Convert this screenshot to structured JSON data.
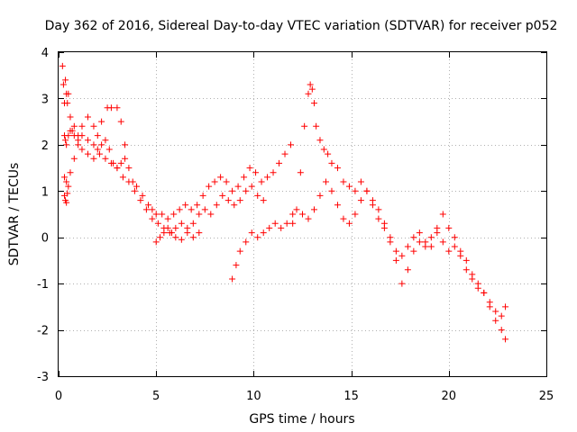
{
  "chart_data": {
    "type": "scatter",
    "title": "Day 362 of 2016, Sidereal Day-to-day VTEC variation (SDTVAR) for receiver p052",
    "xlabel": "GPS time / hours",
    "ylabel": "SDTVAR / TECUs",
    "xlim": [
      0,
      25
    ],
    "ylim": [
      -3,
      4
    ],
    "xticks": [
      0,
      5,
      10,
      15,
      20,
      25
    ],
    "yticks": [
      -3,
      -2,
      -1,
      0,
      1,
      2,
      3,
      4
    ],
    "xtick_labels": [
      "0",
      "5",
      "10",
      "15",
      "20",
      "25"
    ],
    "ytick_labels": [
      "-3",
      "-2",
      "-1",
      "0",
      "1",
      "2",
      "3",
      "4"
    ],
    "grid": true,
    "marker": "+",
    "series": [
      {
        "name": "SDTVAR p052",
        "color": "#ff0000",
        "segments": [
          {
            "x": [
              0.2,
              0.25,
              0.3,
              0.35,
              0.4,
              0.45,
              0.5,
              0.6,
              0.7,
              0.8,
              1.0,
              1.2,
              1.5,
              1.8,
              2.0,
              2.2,
              2.5,
              2.7,
              3.0,
              3.2,
              3.4
            ],
            "y": [
              3.7,
              3.3,
              2.9,
              3.4,
              3.1,
              2.9,
              3.1,
              2.6,
              2.3,
              2.4,
              2.2,
              2.4,
              2.6,
              2.4,
              2.2,
              2.5,
              2.8,
              2.8,
              2.8,
              2.5,
              2.0
            ]
          },
          {
            "x": [
              0.3,
              0.35,
              0.4,
              0.5,
              0.6,
              0.8,
              1.0,
              1.2,
              1.5,
              1.8,
              2.0,
              2.2,
              2.4,
              2.6,
              2.8,
              3.0,
              3.2,
              3.4,
              3.6,
              3.8,
              4.0,
              4.3,
              4.6,
              4.8,
              5.0,
              5.3,
              5.6,
              5.9,
              6.2,
              6.5,
              6.8,
              7.1,
              7.4,
              7.7,
              8.0,
              8.3,
              8.6,
              8.9,
              9.2,
              9.5,
              9.8,
              10.1,
              10.4,
              10.7,
              11.0,
              11.3,
              11.6,
              11.9
            ],
            "y": [
              2.2,
              2.1,
              2.0,
              2.2,
              2.3,
              2.2,
              2.1,
              1.9,
              1.8,
              1.7,
              1.9,
              2.0,
              2.1,
              1.9,
              1.6,
              1.5,
              1.6,
              1.7,
              1.5,
              1.2,
              1.1,
              0.9,
              0.7,
              0.6,
              0.5,
              0.5,
              0.4,
              0.5,
              0.6,
              0.7,
              0.6,
              0.7,
              0.9,
              1.1,
              1.2,
              1.3,
              1.2,
              1.0,
              1.1,
              1.3,
              1.5,
              1.4,
              1.2,
              1.3,
              1.4,
              1.6,
              1.8,
              2.0
            ]
          },
          {
            "x": [
              0.3,
              0.4,
              0.5,
              0.6,
              0.8,
              1.0,
              1.2,
              1.5,
              1.8,
              2.1,
              2.4,
              2.7,
              3.0,
              3.3,
              3.6,
              3.9,
              4.2,
              4.5,
              4.8,
              5.1,
              5.4,
              5.7,
              6.0,
              6.3,
              6.6,
              6.9,
              7.2,
              7.5,
              7.8,
              8.1,
              8.4,
              8.7,
              9.0,
              9.3,
              9.6,
              9.9,
              10.2,
              10.5
            ],
            "y": [
              1.3,
              1.2,
              1.1,
              1.4,
              1.7,
              2.0,
              2.2,
              2.1,
              2.0,
              1.8,
              1.7,
              1.6,
              1.5,
              1.3,
              1.2,
              1.0,
              0.8,
              0.6,
              0.4,
              0.3,
              0.2,
              0.1,
              0.2,
              0.3,
              0.2,
              0.3,
              0.5,
              0.6,
              0.5,
              0.7,
              0.9,
              0.8,
              0.7,
              0.8,
              1.0,
              1.1,
              0.9,
              0.8
            ]
          },
          {
            "x": [
              0.3,
              0.35,
              0.4,
              0.45
            ],
            "y": [
              0.9,
              0.8,
              0.75,
              0.95
            ]
          },
          {
            "x": [
              5.0,
              5.2,
              5.4,
              5.6,
              5.8,
              6.0,
              6.3,
              6.6,
              6.9,
              7.2
            ],
            "y": [
              -0.1,
              0.0,
              0.1,
              0.2,
              0.1,
              0.0,
              -0.05,
              0.1,
              0.0,
              0.1
            ]
          },
          {
            "x": [
              8.9,
              9.1,
              9.3,
              9.6,
              9.9,
              10.2,
              10.5,
              10.8,
              11.1,
              11.4,
              11.7,
              12.0
            ],
            "y": [
              -0.9,
              -0.6,
              -0.3,
              -0.1,
              0.1,
              0.0,
              0.1,
              0.2,
              0.3,
              0.2,
              0.3,
              0.5
            ]
          },
          {
            "x": [
              12.0,
              12.2,
              12.4,
              12.6,
              12.8,
              12.9,
              13.0,
              13.1,
              13.2,
              13.4,
              13.6,
              13.8,
              14.0,
              14.3,
              14.6,
              14.9,
              15.2,
              15.5,
              15.8,
              16.1,
              16.4,
              16.7,
              17.0,
              17.3,
              17.6,
              17.9,
              18.2,
              18.5,
              18.8,
              19.1,
              19.4,
              19.7,
              20.0,
              20.3,
              20.6,
              20.9,
              21.2,
              21.5,
              21.8,
              22.1,
              22.4,
              22.7,
              22.9
            ],
            "y": [
              0.3,
              0.6,
              1.4,
              2.4,
              3.1,
              3.3,
              3.2,
              2.9,
              2.4,
              2.1,
              1.9,
              1.8,
              1.6,
              1.5,
              1.2,
              1.1,
              1.0,
              1.2,
              1.0,
              0.8,
              0.6,
              0.3,
              0.0,
              -0.3,
              -0.4,
              -0.2,
              0.0,
              0.1,
              -0.1,
              -0.2,
              0.2,
              0.5,
              0.2,
              0.0,
              -0.3,
              -0.5,
              -0.8,
              -1.0,
              -1.2,
              -1.5,
              -1.8,
              -2.0,
              -2.2
            ]
          },
          {
            "x": [
              12.5,
              12.8,
              13.1,
              13.4,
              13.7,
              14.0,
              14.3,
              14.6,
              14.9,
              15.2,
              15.5,
              15.8,
              16.1,
              16.4,
              16.7,
              17.0,
              17.3,
              17.6,
              17.9,
              18.2,
              18.5,
              18.8,
              19.1,
              19.4,
              19.7,
              20.0,
              20.3,
              20.6,
              20.9,
              21.2,
              21.5,
              21.8,
              22.1,
              22.4,
              22.7,
              22.9
            ],
            "y": [
              0.5,
              0.4,
              0.6,
              0.9,
              1.2,
              1.0,
              0.7,
              0.4,
              0.3,
              0.5,
              0.8,
              1.0,
              0.7,
              0.4,
              0.2,
              -0.1,
              -0.5,
              -1.0,
              -0.7,
              -0.3,
              -0.1,
              -0.2,
              0.0,
              0.1,
              -0.1,
              -0.3,
              -0.2,
              -0.4,
              -0.7,
              -0.9,
              -1.1,
              -1.2,
              -1.4,
              -1.6,
              -1.7,
              -1.5
            ]
          }
        ]
      }
    ]
  }
}
